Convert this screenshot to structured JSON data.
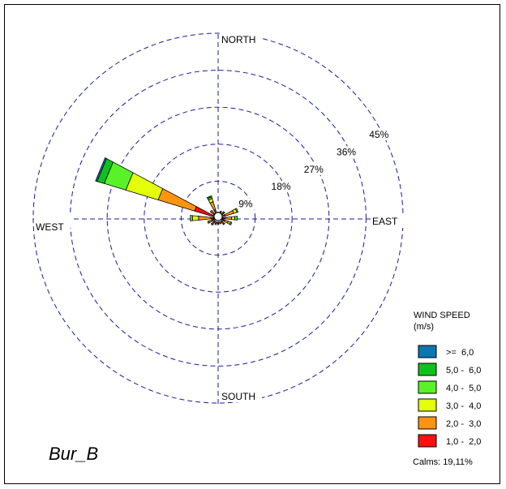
{
  "chart_data": {
    "type": "windrose",
    "site_label": "Bur_B",
    "directions": [
      "NORTH",
      "EAST",
      "SOUTH",
      "WEST"
    ],
    "ring_labels": [
      "9%",
      "18%",
      "27%",
      "36%",
      "45%"
    ],
    "ring_values": [
      9,
      18,
      27,
      36,
      45
    ],
    "legend": {
      "title": "WIND SPEED",
      "unit": "(m/s)",
      "bins": [
        {
          "label": ">=  6,0",
          "color": "#0a77b2"
        },
        {
          "label": "5,0 -  6,0",
          "color": "#0fc21b"
        },
        {
          "label": "4,0 -  5,0",
          "color": "#59f229"
        },
        {
          "label": "3,0 -  4,0",
          "color": "#e3ff0a"
        },
        {
          "label": "2,0 -  3,0",
          "color": "#ff9410"
        },
        {
          "label": "1,0 -  2,0",
          "color": "#ff0f0f"
        }
      ]
    },
    "calms": "Calms: 19,11%",
    "sectors": [
      {
        "angle": 0,
        "values": [
          0.3,
          0.2,
          0,
          0,
          0,
          0
        ]
      },
      {
        "angle": 22.5,
        "values": [
          0.4,
          0.3,
          0.1,
          0,
          0,
          0
        ]
      },
      {
        "angle": 45,
        "values": [
          0.5,
          0.4,
          0.2,
          0,
          0,
          0
        ]
      },
      {
        "angle": 67.5,
        "values": [
          0.8,
          2.2,
          0.8,
          0.3,
          0,
          0
        ]
      },
      {
        "angle": 90,
        "values": [
          0.8,
          1.5,
          0.8,
          0.6,
          0,
          0
        ]
      },
      {
        "angle": 112.5,
        "values": [
          0.6,
          1.0,
          0.6,
          0.3,
          0,
          0
        ]
      },
      {
        "angle": 135,
        "values": [
          0.4,
          0.5,
          0.2,
          0,
          0,
          0
        ]
      },
      {
        "angle": 157.5,
        "values": [
          0.3,
          0.2,
          0,
          0,
          0,
          0
        ]
      },
      {
        "angle": 180,
        "values": [
          0.3,
          0.2,
          0,
          0,
          0,
          0
        ]
      },
      {
        "angle": 202.5,
        "values": [
          0.4,
          0.3,
          0,
          0,
          0,
          0
        ]
      },
      {
        "angle": 225,
        "values": [
          0.5,
          0.5,
          0.2,
          0,
          0,
          0
        ]
      },
      {
        "angle": 247.5,
        "values": [
          0.6,
          0.8,
          0.3,
          0,
          0,
          0
        ]
      },
      {
        "angle": 270,
        "values": [
          0.8,
          3.0,
          1.5,
          0.5,
          0,
          0
        ]
      },
      {
        "angle": 292.5,
        "values": [
          5.0,
          9.3,
          8.2,
          5.5,
          1.8,
          0.4
        ]
      },
      {
        "angle": 315,
        "values": [
          0.6,
          0.6,
          0.3,
          0,
          0,
          0
        ]
      },
      {
        "angle": 337.5,
        "values": [
          1.2,
          2.0,
          0.8,
          0.4,
          0.3,
          0
        ]
      }
    ]
  }
}
